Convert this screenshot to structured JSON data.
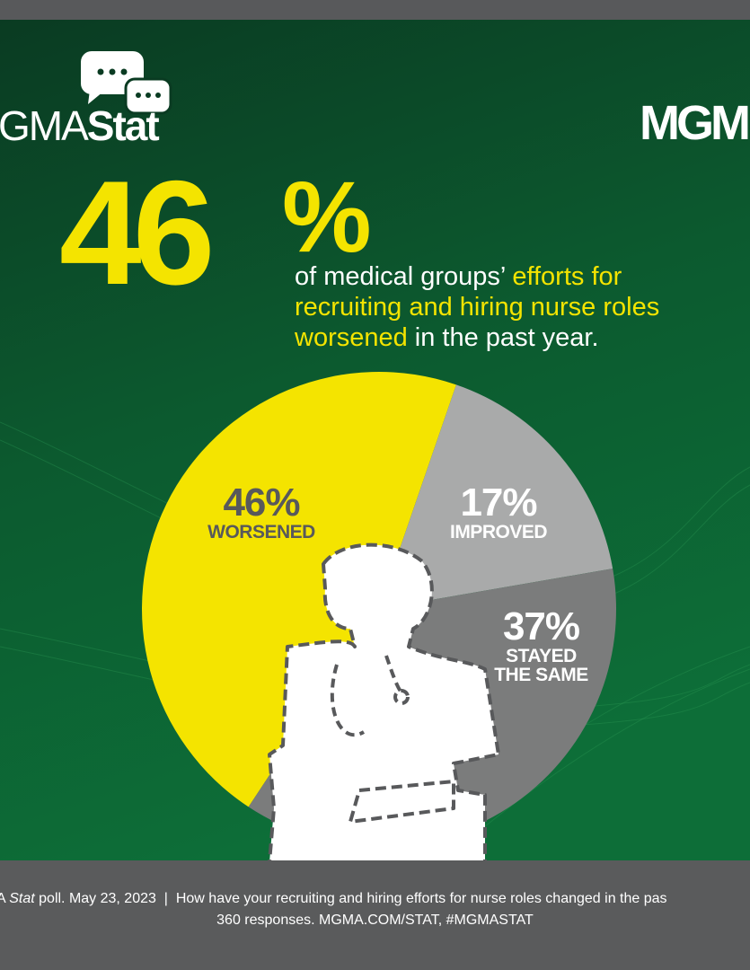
{
  "logo_left": {
    "prefix": "GMA",
    "suffix": "Stat"
  },
  "logo_right": "MGM",
  "headline": {
    "number": "46",
    "symbol": "%",
    "line1_white": "of medical groups’ ",
    "line1_yellow": "efforts for",
    "line2_yellow": "recruiting and hiring nurse roles",
    "line3_yellow": "worsened",
    "line3_white": " in the past year."
  },
  "chart_data": {
    "type": "pie",
    "categories": [
      "WORSENED",
      "IMPROVED",
      "STAYED THE SAME"
    ],
    "values": [
      46,
      17,
      37
    ],
    "value_labels": [
      "46%",
      "17%",
      "37%"
    ],
    "colors": [
      "#f4e400",
      "#a9aaaa",
      "#7b7c7c"
    ]
  },
  "footer": {
    "line1_pre": "A ",
    "line1_italic": "Stat",
    "line1_post": " poll. May 23, 2023  |  How have your recruiting and hiring efforts for nurse roles changed in the pas",
    "line2": "360 responses. MGMA.COM/STAT, #MGMASTAT"
  }
}
